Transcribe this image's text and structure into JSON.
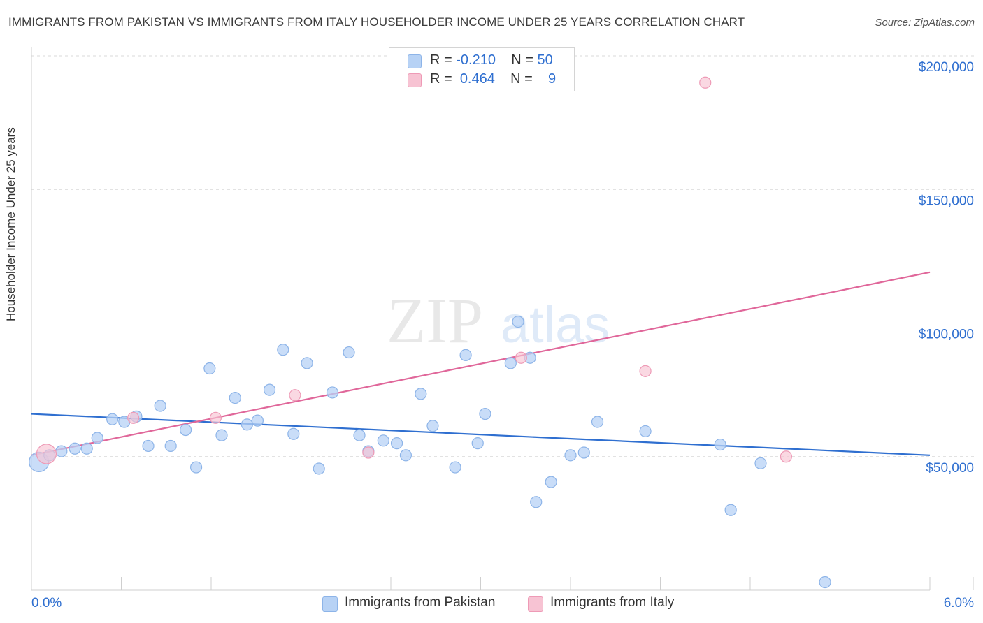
{
  "title": "IMMIGRANTS FROM PAKISTAN VS IMMIGRANTS FROM ITALY HOUSEHOLDER INCOME UNDER 25 YEARS CORRELATION CHART",
  "source": "Source: ZipAtlas.com",
  "legend_top": {
    "rows": [
      {
        "r_label": "R =",
        "r_value": "-0.210",
        "n_label": "N =",
        "n_value": "50"
      },
      {
        "r_label": "R =",
        "r_value": "0.464",
        "n_label": "N =",
        "n_value": "9"
      }
    ]
  },
  "legend_bottom": [
    "Immigrants from Pakistan",
    "Immigrants from Italy"
  ],
  "watermark": {
    "zip": "ZIP",
    "atlas": "atlas"
  },
  "colors": {
    "pakistan_fill": "#b7d2f5",
    "pakistan_stroke": "#8db4e8",
    "pakistan_line": "#2f6fd0",
    "italy_fill": "#f7c3d3",
    "italy_stroke": "#ee9ab6",
    "italy_line": "#e0679a",
    "grid": "#d9d9d9",
    "axis_label": "#2f6fd0"
  },
  "chart_data": {
    "type": "scatter",
    "title": "IMMIGRANTS FROM PAKISTAN VS IMMIGRANTS FROM ITALY HOUSEHOLDER INCOME UNDER 25 YEARS CORRELATION CHART",
    "xlabel": "",
    "ylabel": "Householder Income Under 25 years",
    "xlim": [
      0,
      6
    ],
    "ylim": [
      0,
      205000
    ],
    "x_tick_labels": [
      "0.0%",
      "6.0%"
    ],
    "y_ticks": [
      {
        "value": 50000,
        "label": "$50,000"
      },
      {
        "value": 100000,
        "label": "$100,000"
      },
      {
        "value": 150000,
        "label": "$150,000"
      },
      {
        "value": 200000,
        "label": "$200,000"
      }
    ],
    "grid": "horizontal dashed",
    "series": [
      {
        "name": "Immigrants from Pakistan",
        "r": -0.21,
        "n": 50,
        "trend": {
          "x": [
            0,
            6
          ],
          "y": [
            66000,
            50500
          ]
        },
        "points": [
          {
            "x": 0.05,
            "y": 48000,
            "big": true
          },
          {
            "x": 0.12,
            "y": 50500
          },
          {
            "x": 0.2,
            "y": 52000
          },
          {
            "x": 0.29,
            "y": 53000
          },
          {
            "x": 0.37,
            "y": 53000
          },
          {
            "x": 0.44,
            "y": 57000
          },
          {
            "x": 0.54,
            "y": 64000
          },
          {
            "x": 0.62,
            "y": 63000
          },
          {
            "x": 0.7,
            "y": 65000
          },
          {
            "x": 0.78,
            "y": 54000
          },
          {
            "x": 0.86,
            "y": 69000
          },
          {
            "x": 0.93,
            "y": 54000
          },
          {
            "x": 1.03,
            "y": 60000
          },
          {
            "x": 1.1,
            "y": 46000
          },
          {
            "x": 1.19,
            "y": 83000
          },
          {
            "x": 1.27,
            "y": 58000
          },
          {
            "x": 1.36,
            "y": 72000
          },
          {
            "x": 1.44,
            "y": 62000
          },
          {
            "x": 1.51,
            "y": 63500
          },
          {
            "x": 1.59,
            "y": 75000
          },
          {
            "x": 1.68,
            "y": 90000
          },
          {
            "x": 1.75,
            "y": 58500
          },
          {
            "x": 1.84,
            "y": 85000
          },
          {
            "x": 1.92,
            "y": 45500
          },
          {
            "x": 2.01,
            "y": 74000
          },
          {
            "x": 2.12,
            "y": 89000
          },
          {
            "x": 2.19,
            "y": 58000
          },
          {
            "x": 2.25,
            "y": 52000
          },
          {
            "x": 2.35,
            "y": 56000
          },
          {
            "x": 2.44,
            "y": 55000
          },
          {
            "x": 2.5,
            "y": 50500
          },
          {
            "x": 2.6,
            "y": 73500
          },
          {
            "x": 2.68,
            "y": 61500
          },
          {
            "x": 2.83,
            "y": 46000
          },
          {
            "x": 2.9,
            "y": 88000
          },
          {
            "x": 2.98,
            "y": 55000
          },
          {
            "x": 3.03,
            "y": 66000
          },
          {
            "x": 3.2,
            "y": 85000
          },
          {
            "x": 3.25,
            "y": 100500
          },
          {
            "x": 3.33,
            "y": 87000
          },
          {
            "x": 3.37,
            "y": 33000
          },
          {
            "x": 3.47,
            "y": 40500
          },
          {
            "x": 3.6,
            "y": 50500
          },
          {
            "x": 3.69,
            "y": 51500
          },
          {
            "x": 3.78,
            "y": 63000
          },
          {
            "x": 4.1,
            "y": 59500
          },
          {
            "x": 4.6,
            "y": 54500
          },
          {
            "x": 4.67,
            "y": 30000
          },
          {
            "x": 4.87,
            "y": 47500
          },
          {
            "x": 5.3,
            "y": 3000
          }
        ]
      },
      {
        "name": "Immigrants from Italy",
        "r": 0.464,
        "n": 9,
        "trend": {
          "x": [
            0,
            6
          ],
          "y": [
            50500,
            119000
          ]
        },
        "points": [
          {
            "x": 0.1,
            "y": 51000,
            "big": true
          },
          {
            "x": 0.68,
            "y": 64500
          },
          {
            "x": 1.23,
            "y": 64500
          },
          {
            "x": 1.76,
            "y": 73000
          },
          {
            "x": 2.25,
            "y": 51500
          },
          {
            "x": 3.27,
            "y": 87000
          },
          {
            "x": 4.1,
            "y": 82000
          },
          {
            "x": 4.5,
            "y": 190000
          },
          {
            "x": 5.04,
            "y": 50000
          }
        ]
      }
    ]
  }
}
